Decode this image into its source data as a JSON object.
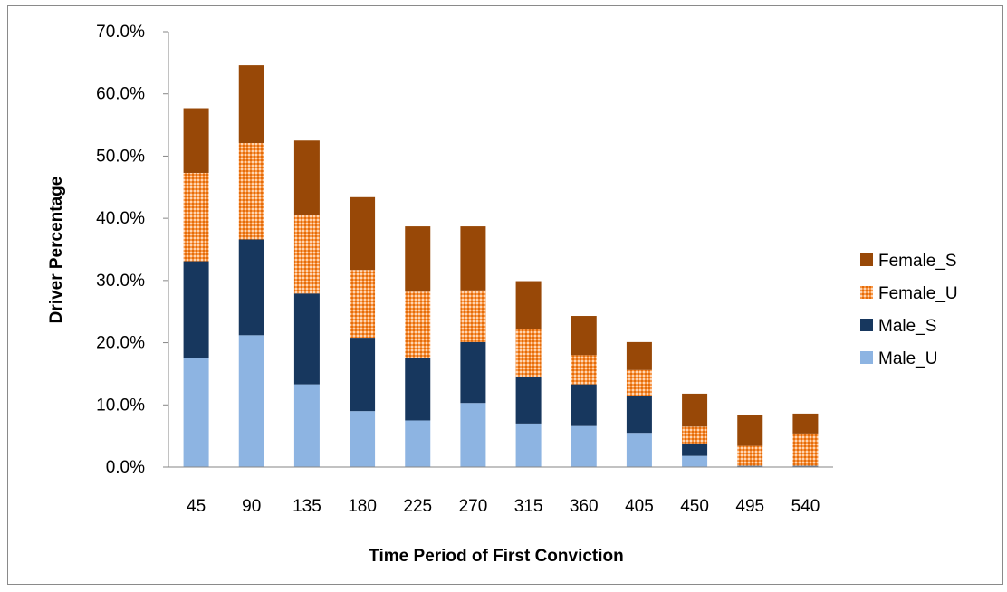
{
  "chart_data": {
    "type": "bar",
    "stacked": true,
    "title": "",
    "xlabel": "Time Period of First Conviction",
    "ylabel": "Driver Percentage",
    "ylim": [
      0,
      70
    ],
    "yticks": [
      "0.0%",
      "10.0%",
      "20.0%",
      "30.0%",
      "40.0%",
      "50.0%",
      "60.0%",
      "70.0%"
    ],
    "categories": [
      "45",
      "90",
      "135",
      "180",
      "225",
      "270",
      "315",
      "360",
      "405",
      "450",
      "495",
      "540"
    ],
    "series": [
      {
        "name": "Male_U",
        "color": "#8db4e2",
        "values": [
          17.5,
          21.2,
          13.3,
          9.0,
          7.5,
          10.3,
          7.0,
          6.6,
          5.5,
          1.8,
          0.1,
          0.1
        ]
      },
      {
        "name": "Male_S",
        "color": "#17375e",
        "values": [
          15.6,
          15.4,
          14.6,
          11.8,
          10.1,
          9.8,
          7.5,
          6.7,
          5.9,
          2.0,
          0.1,
          0.1
        ]
      },
      {
        "name": "Female_U",
        "color": "#e46c0a",
        "pattern": "dotted",
        "values": [
          14.2,
          15.5,
          12.7,
          10.9,
          10.6,
          8.3,
          7.7,
          4.7,
          4.2,
          2.7,
          3.2,
          5.2
        ]
      },
      {
        "name": "Female_S",
        "color": "#984807",
        "values": [
          10.4,
          12.5,
          11.9,
          11.7,
          10.5,
          10.3,
          7.7,
          6.3,
          4.5,
          5.3,
          5.0,
          3.2
        ]
      }
    ],
    "legend_order": [
      "Female_S",
      "Female_U",
      "Male_S",
      "Male_U"
    ],
    "legend_position": "right",
    "grid": false
  }
}
